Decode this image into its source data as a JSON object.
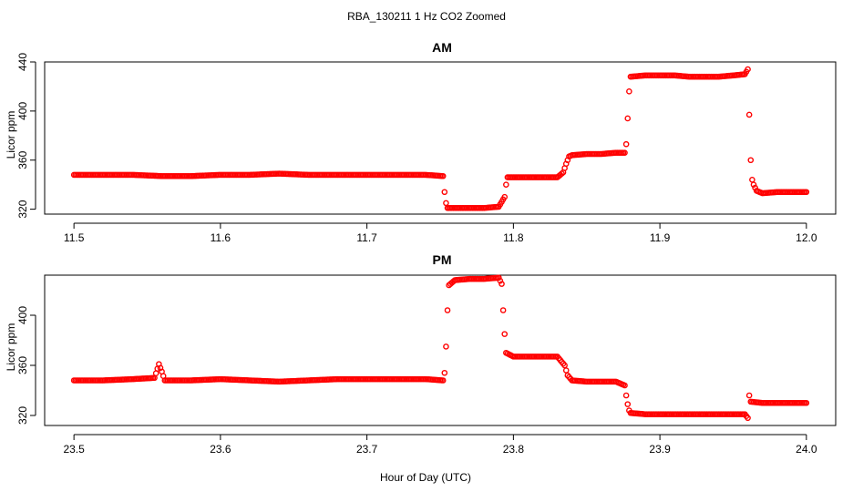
{
  "figure": {
    "title": "RBA_130211  1 Hz CO2 Zoomed",
    "xlabel": "Hour of Day (UTC)"
  },
  "chart_data": [
    {
      "type": "scatter",
      "title": "AM",
      "ylabel": "Licor ppm",
      "xlim": [
        11.48,
        12.02
      ],
      "ylim": [
        316,
        440
      ],
      "xticks": [
        11.5,
        11.6,
        11.7,
        11.8,
        11.9,
        12.0
      ],
      "xtick_labels": [
        "11.5",
        "11.6",
        "11.7",
        "11.8",
        "11.9",
        "12.0"
      ],
      "yticks": [
        320,
        360,
        400,
        440
      ],
      "ytick_labels": [
        "320",
        "360",
        "400",
        "440"
      ],
      "grid": false,
      "color": "#ff0000",
      "marker": "open-circle",
      "series": [
        {
          "x": [
            11.5,
            11.52,
            11.54,
            11.56,
            11.58,
            11.6,
            11.62,
            11.64,
            11.66,
            11.68,
            11.7,
            11.72,
            11.74,
            11.752,
            11.753,
            11.754,
            11.755,
            11.76,
            11.77,
            11.78,
            11.79,
            11.794,
            11.795,
            11.796,
            11.8,
            11.81,
            11.82,
            11.83,
            11.834,
            11.836,
            11.838,
            11.84,
            11.85,
            11.86,
            11.87,
            11.876,
            11.877,
            11.878,
            11.879,
            11.88,
            11.89,
            11.9,
            11.91,
            11.92,
            11.93,
            11.94,
            11.95,
            11.958,
            11.96,
            11.961,
            11.962,
            11.963,
            11.964,
            11.966,
            11.97,
            11.98,
            11.99,
            12.0
          ],
          "y": [
            348,
            348,
            348,
            347,
            347,
            348,
            348,
            349,
            348,
            348,
            348,
            348,
            348,
            347,
            334,
            325,
            321,
            321,
            321,
            321,
            322,
            330,
            340,
            346,
            346,
            346,
            346,
            346,
            350,
            357,
            363,
            364,
            365,
            365,
            366,
            366,
            373,
            394,
            416,
            428,
            429,
            429,
            429,
            428,
            428,
            428,
            429,
            430,
            434,
            397,
            360,
            344,
            340,
            335,
            333,
            334,
            334,
            334
          ]
        }
      ]
    },
    {
      "type": "scatter",
      "title": "PM",
      "ylabel": "Licor ppm",
      "xlim": [
        23.48,
        24.02
      ],
      "ylim": [
        312,
        432
      ],
      "xticks": [
        23.5,
        23.6,
        23.7,
        23.8,
        23.9,
        24.0
      ],
      "xtick_labels": [
        "23.5",
        "23.6",
        "23.7",
        "23.8",
        "23.9",
        "24.0"
      ],
      "yticks": [
        320,
        360,
        400
      ],
      "ytick_labels": [
        "320",
        "360",
        "400"
      ],
      "grid": false,
      "color": "#ff0000",
      "marker": "open-circle",
      "series": [
        {
          "x": [
            23.5,
            23.52,
            23.54,
            23.555,
            23.558,
            23.56,
            23.562,
            23.58,
            23.6,
            23.62,
            23.64,
            23.66,
            23.68,
            23.7,
            23.72,
            23.74,
            23.752,
            23.753,
            23.754,
            23.755,
            23.756,
            23.76,
            23.77,
            23.78,
            23.79,
            23.792,
            23.793,
            23.794,
            23.795,
            23.8,
            23.81,
            23.82,
            23.83,
            23.835,
            23.837,
            23.84,
            23.85,
            23.86,
            23.87,
            23.876,
            23.877,
            23.878,
            23.879,
            23.88,
            23.89,
            23.9,
            23.91,
            23.92,
            23.93,
            23.94,
            23.95,
            23.958,
            23.96,
            23.961,
            23.962,
            23.97,
            23.98,
            23.99,
            24.0
          ],
          "y": [
            348,
            348,
            349,
            350,
            361,
            355,
            348,
            348,
            349,
            348,
            347,
            348,
            349,
            349,
            349,
            349,
            348,
            354,
            375,
            404,
            424,
            428,
            429,
            429,
            430,
            425,
            404,
            385,
            370,
            367,
            367,
            367,
            367,
            360,
            352,
            348,
            347,
            347,
            347,
            344,
            336,
            329,
            324,
            322,
            321,
            321,
            321,
            321,
            321,
            321,
            321,
            321,
            318,
            336,
            331,
            330,
            330,
            330,
            330
          ]
        }
      ]
    }
  ]
}
